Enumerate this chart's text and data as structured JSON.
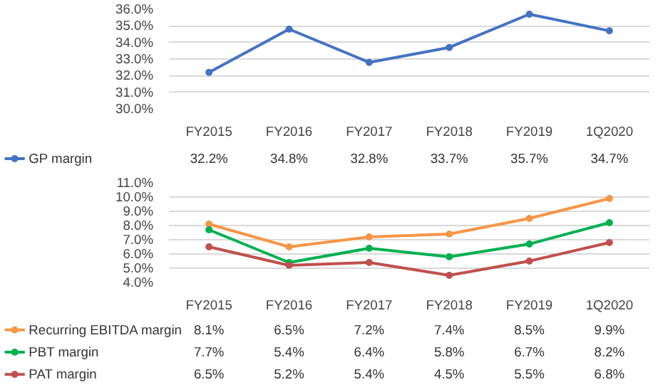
{
  "chart_data": [
    {
      "type": "line",
      "categories": [
        "FY2015",
        "FY2016",
        "FY2017",
        "FY2018",
        "FY2019",
        "1Q2020"
      ],
      "series": [
        {
          "name": "GP margin",
          "color": "#4472c4",
          "values": [
            32.2,
            34.8,
            32.8,
            33.7,
            35.7,
            34.7
          ],
          "value_labels": [
            "32.2%",
            "34.8%",
            "32.8%",
            "33.7%",
            "35.7%",
            "34.7%"
          ]
        }
      ],
      "ylim": [
        30,
        36
      ],
      "yticks": [
        {
          "value": 30,
          "label": "30.0%"
        },
        {
          "value": 31,
          "label": "31.0%"
        },
        {
          "value": 32,
          "label": "32.0%"
        },
        {
          "value": 33,
          "label": "33.0%"
        },
        {
          "value": 34,
          "label": "34.0%"
        },
        {
          "value": 35,
          "label": "35.0%"
        },
        {
          "value": 36,
          "label": "36.0%"
        }
      ],
      "grid": "y",
      "legend": "bottom",
      "marker": "circle"
    },
    {
      "type": "line",
      "categories": [
        "FY2015",
        "FY2016",
        "FY2017",
        "FY2018",
        "FY2019",
        "1Q2020"
      ],
      "series": [
        {
          "name": "Recurring EBITDA margin",
          "color": "#f79646",
          "values": [
            8.1,
            6.5,
            7.2,
            7.4,
            8.5,
            9.9
          ],
          "value_labels": [
            "8.1%",
            "6.5%",
            "7.2%",
            "7.4%",
            "8.5%",
            "9.9%"
          ]
        },
        {
          "name": "PBT margin",
          "color": "#00b050",
          "values": [
            7.7,
            5.4,
            6.4,
            5.8,
            6.7,
            8.2
          ],
          "value_labels": [
            "7.7%",
            "5.4%",
            "6.4%",
            "5.8%",
            "6.7%",
            "8.2%"
          ]
        },
        {
          "name": "PAT margin",
          "color": "#c0504d",
          "values": [
            6.5,
            5.2,
            5.4,
            4.5,
            5.5,
            6.8
          ],
          "value_labels": [
            "6.5%",
            "5.2%",
            "5.4%",
            "4.5%",
            "5.5%",
            "6.8%"
          ]
        }
      ],
      "ylim": [
        4,
        11
      ],
      "yticks": [
        {
          "value": 4,
          "label": "4.0%"
        },
        {
          "value": 5,
          "label": "5.0%"
        },
        {
          "value": 6,
          "label": "6.0%"
        },
        {
          "value": 7,
          "label": "7.0%"
        },
        {
          "value": 8,
          "label": "8.0%"
        },
        {
          "value": 9,
          "label": "9.0%"
        },
        {
          "value": 10,
          "label": "10.0%"
        },
        {
          "value": 11,
          "label": "11.0%"
        }
      ],
      "grid": "y",
      "legend": "bottom",
      "marker": "circle"
    }
  ]
}
